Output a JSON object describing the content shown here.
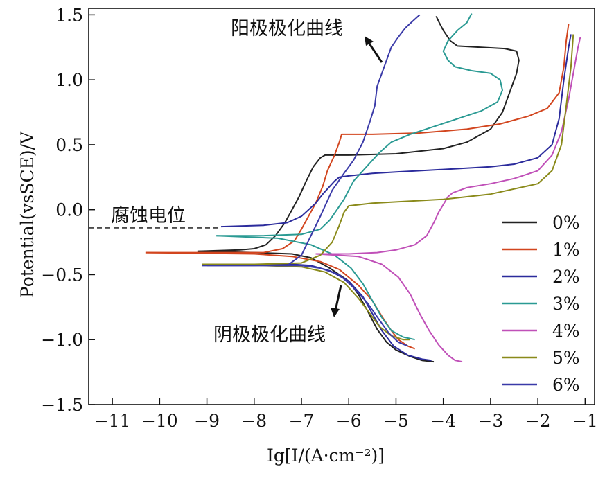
{
  "chart_data": {
    "type": "line",
    "title": "",
    "xlabel": "Ig[I/(A·cm⁻²)]",
    "ylabel": "Potential(vsSCE)/V",
    "xlim": [
      -11.5,
      -0.8
    ],
    "ylim": [
      -1.5,
      1.55
    ],
    "x_ticks": [
      -11,
      -10,
      -9,
      -8,
      -7,
      -6,
      -5,
      -4,
      -3,
      -2,
      -1
    ],
    "x_tick_labels": [
      "−11",
      "−10",
      "−9",
      "−8",
      "−7",
      "−6",
      "−5",
      "−4",
      "−3",
      "−2",
      "−1"
    ],
    "y_ticks": [
      -1.5,
      -1.0,
      -0.5,
      0.0,
      0.5,
      1.0,
      1.5
    ],
    "y_tick_labels": [
      "−1.5",
      "−1.0",
      "−0.5",
      "0.0",
      "0.5",
      "1.0",
      "1.5"
    ],
    "grid": false,
    "legend_position": "bottom-right",
    "annotations": {
      "anodic": "阳极极化曲线",
      "cathodic": "阴极极化曲线",
      "corrosion_potential": "腐蚀电位"
    },
    "corrosion_potential_line": {
      "y": -0.14,
      "x_from": -11.5,
      "x_to": -8.7
    },
    "series": [
      {
        "name": "0%",
        "color": "#222222",
        "anodic": [
          [
            -9.2,
            -0.32
          ],
          [
            -8.3,
            -0.31
          ],
          [
            -8.0,
            -0.3
          ],
          [
            -7.75,
            -0.27
          ],
          [
            -7.55,
            -0.2
          ],
          [
            -7.35,
            -0.1
          ],
          [
            -7.2,
            0.0
          ],
          [
            -7.05,
            0.1
          ],
          [
            -6.9,
            0.22
          ],
          [
            -6.75,
            0.33
          ],
          [
            -6.6,
            0.4
          ],
          [
            -6.5,
            0.42
          ],
          [
            -6.0,
            0.42
          ],
          [
            -5.0,
            0.43
          ],
          [
            -4.0,
            0.47
          ],
          [
            -3.5,
            0.52
          ],
          [
            -3.0,
            0.62
          ],
          [
            -2.75,
            0.75
          ],
          [
            -2.6,
            0.9
          ],
          [
            -2.45,
            1.05
          ],
          [
            -2.4,
            1.15
          ],
          [
            -2.45,
            1.22
          ],
          [
            -2.7,
            1.24
          ],
          [
            -3.2,
            1.25
          ],
          [
            -3.7,
            1.26
          ],
          [
            -3.85,
            1.3
          ],
          [
            -4.0,
            1.38
          ],
          [
            -4.1,
            1.45
          ],
          [
            -4.15,
            1.49
          ]
        ],
        "cathodic": [
          [
            -9.2,
            -0.32
          ],
          [
            -8.0,
            -0.33
          ],
          [
            -7.2,
            -0.34
          ],
          [
            -6.8,
            -0.37
          ],
          [
            -6.4,
            -0.45
          ],
          [
            -6.0,
            -0.55
          ],
          [
            -5.8,
            -0.65
          ],
          [
            -5.6,
            -0.78
          ],
          [
            -5.4,
            -0.92
          ],
          [
            -5.2,
            -1.02
          ],
          [
            -5.0,
            -1.08
          ],
          [
            -4.7,
            -1.13
          ],
          [
            -4.45,
            -1.16
          ],
          [
            -4.2,
            -1.17
          ]
        ]
      },
      {
        "name": "1%",
        "color": "#d2451e",
        "anodic": [
          [
            -10.3,
            -0.33
          ],
          [
            -9.0,
            -0.33
          ],
          [
            -7.8,
            -0.33
          ],
          [
            -7.4,
            -0.3
          ],
          [
            -7.15,
            -0.24
          ],
          [
            -7.0,
            -0.15
          ],
          [
            -6.85,
            -0.05
          ],
          [
            -6.7,
            0.05
          ],
          [
            -6.55,
            0.18
          ],
          [
            -6.45,
            0.3
          ],
          [
            -6.3,
            0.42
          ],
          [
            -6.2,
            0.52
          ],
          [
            -6.15,
            0.58
          ],
          [
            -5.5,
            0.58
          ],
          [
            -4.5,
            0.59
          ],
          [
            -3.5,
            0.62
          ],
          [
            -2.8,
            0.66
          ],
          [
            -2.2,
            0.72
          ],
          [
            -1.8,
            0.78
          ],
          [
            -1.55,
            0.9
          ],
          [
            -1.45,
            1.1
          ],
          [
            -1.4,
            1.3
          ],
          [
            -1.35,
            1.43
          ]
        ],
        "cathodic": [
          [
            -10.3,
            -0.33
          ],
          [
            -8.0,
            -0.34
          ],
          [
            -7.2,
            -0.36
          ],
          [
            -6.6,
            -0.4
          ],
          [
            -6.2,
            -0.46
          ],
          [
            -5.8,
            -0.58
          ],
          [
            -5.5,
            -0.7
          ],
          [
            -5.3,
            -0.82
          ],
          [
            -5.1,
            -0.93
          ],
          [
            -4.95,
            -1.0
          ],
          [
            -4.75,
            -1.05
          ],
          [
            -4.6,
            -1.07
          ]
        ]
      },
      {
        "name": "2%",
        "color": "#2b2b9c",
        "anodic": [
          [
            -8.7,
            -0.13
          ],
          [
            -7.8,
            -0.12
          ],
          [
            -7.3,
            -0.1
          ],
          [
            -7.0,
            -0.05
          ],
          [
            -6.7,
            0.05
          ],
          [
            -6.55,
            0.12
          ],
          [
            -6.4,
            0.18
          ],
          [
            -6.3,
            0.22
          ],
          [
            -6.2,
            0.25
          ],
          [
            -6.0,
            0.26
          ],
          [
            -5.5,
            0.28
          ],
          [
            -5.0,
            0.29
          ],
          [
            -4.0,
            0.31
          ],
          [
            -3.0,
            0.33
          ],
          [
            -2.5,
            0.35
          ],
          [
            -2.0,
            0.4
          ],
          [
            -1.7,
            0.5
          ],
          [
            -1.55,
            0.7
          ],
          [
            -1.45,
            1.0
          ],
          [
            -1.35,
            1.25
          ],
          [
            -1.3,
            1.35
          ]
        ],
        "cathodic": [
          [
            -9.0,
            -0.43
          ],
          [
            -8.0,
            -0.43
          ],
          [
            -7.2,
            -0.42
          ],
          [
            -6.8,
            -0.43
          ],
          [
            -6.4,
            -0.47
          ],
          [
            -6.0,
            -0.55
          ],
          [
            -5.7,
            -0.67
          ],
          [
            -5.5,
            -0.8
          ],
          [
            -5.3,
            -0.93
          ],
          [
            -5.05,
            -1.05
          ],
          [
            -4.75,
            -1.12
          ],
          [
            -4.45,
            -1.15
          ],
          [
            -4.25,
            -1.16
          ]
        ]
      },
      {
        "name": "3%",
        "color": "#2a9a93",
        "anodic": [
          [
            -8.8,
            -0.2
          ],
          [
            -7.8,
            -0.2
          ],
          [
            -7.0,
            -0.19
          ],
          [
            -6.6,
            -0.15
          ],
          [
            -6.4,
            -0.08
          ],
          [
            -6.25,
            0.0
          ],
          [
            -6.1,
            0.08
          ],
          [
            -6.0,
            0.15
          ],
          [
            -5.9,
            0.22
          ],
          [
            -5.75,
            0.28
          ],
          [
            -5.55,
            0.36
          ],
          [
            -5.35,
            0.44
          ],
          [
            -5.1,
            0.52
          ],
          [
            -4.7,
            0.58
          ],
          [
            -4.2,
            0.64
          ],
          [
            -3.7,
            0.7
          ],
          [
            -3.2,
            0.76
          ],
          [
            -2.85,
            0.83
          ],
          [
            -2.75,
            0.92
          ],
          [
            -2.8,
            1.0
          ],
          [
            -3.0,
            1.05
          ],
          [
            -3.4,
            1.07
          ],
          [
            -3.75,
            1.1
          ],
          [
            -3.9,
            1.15
          ],
          [
            -4.0,
            1.22
          ],
          [
            -3.9,
            1.3
          ],
          [
            -3.7,
            1.38
          ],
          [
            -3.5,
            1.44
          ],
          [
            -3.4,
            1.51
          ]
        ],
        "cathodic": [
          [
            -8.8,
            -0.2
          ],
          [
            -7.5,
            -0.22
          ],
          [
            -6.8,
            -0.27
          ],
          [
            -6.3,
            -0.35
          ],
          [
            -5.95,
            -0.45
          ],
          [
            -5.7,
            -0.57
          ],
          [
            -5.5,
            -0.7
          ],
          [
            -5.3,
            -0.83
          ],
          [
            -5.1,
            -0.93
          ],
          [
            -4.85,
            -0.98
          ],
          [
            -4.6,
            -1.0
          ]
        ]
      },
      {
        "name": "4%",
        "color": "#c050b8",
        "anodic": [
          [
            -6.7,
            -0.34
          ],
          [
            -6.0,
            -0.34
          ],
          [
            -5.4,
            -0.33
          ],
          [
            -5.0,
            -0.31
          ],
          [
            -4.6,
            -0.27
          ],
          [
            -4.35,
            -0.2
          ],
          [
            -4.2,
            -0.1
          ],
          [
            -4.1,
            -0.02
          ],
          [
            -4.0,
            0.04
          ],
          [
            -3.9,
            0.1
          ],
          [
            -3.8,
            0.13
          ],
          [
            -3.5,
            0.17
          ],
          [
            -3.0,
            0.2
          ],
          [
            -2.5,
            0.24
          ],
          [
            -2.0,
            0.3
          ],
          [
            -1.7,
            0.42
          ],
          [
            -1.5,
            0.6
          ],
          [
            -1.35,
            0.85
          ],
          [
            -1.25,
            1.05
          ],
          [
            -1.15,
            1.25
          ],
          [
            -1.1,
            1.33
          ]
        ],
        "cathodic": [
          [
            -6.7,
            -0.34
          ],
          [
            -5.8,
            -0.36
          ],
          [
            -5.3,
            -0.42
          ],
          [
            -4.95,
            -0.52
          ],
          [
            -4.7,
            -0.65
          ],
          [
            -4.5,
            -0.8
          ],
          [
            -4.3,
            -0.93
          ],
          [
            -4.1,
            -1.04
          ],
          [
            -3.9,
            -1.12
          ],
          [
            -3.75,
            -1.16
          ],
          [
            -3.6,
            -1.17
          ]
        ]
      },
      {
        "name": "5%",
        "color": "#8a8a1a",
        "anodic": [
          [
            -9.1,
            -0.42
          ],
          [
            -8.0,
            -0.42
          ],
          [
            -7.0,
            -0.41
          ],
          [
            -6.6,
            -0.35
          ],
          [
            -6.35,
            -0.25
          ],
          [
            -6.2,
            -0.12
          ],
          [
            -6.1,
            -0.02
          ],
          [
            -6.0,
            0.03
          ],
          [
            -5.5,
            0.05
          ],
          [
            -5.0,
            0.06
          ],
          [
            -4.0,
            0.08
          ],
          [
            -3.0,
            0.12
          ],
          [
            -2.5,
            0.16
          ],
          [
            -2.0,
            0.2
          ],
          [
            -1.7,
            0.3
          ],
          [
            -1.5,
            0.5
          ],
          [
            -1.4,
            0.8
          ],
          [
            -1.3,
            1.1
          ],
          [
            -1.25,
            1.35
          ]
        ],
        "cathodic": [
          [
            -9.1,
            -0.42
          ],
          [
            -7.8,
            -0.43
          ],
          [
            -7.0,
            -0.44
          ],
          [
            -6.5,
            -0.48
          ],
          [
            -6.1,
            -0.56
          ],
          [
            -5.8,
            -0.68
          ],
          [
            -5.55,
            -0.8
          ],
          [
            -5.35,
            -0.9
          ],
          [
            -5.1,
            -0.97
          ],
          [
            -4.85,
            -1.0
          ],
          [
            -4.7,
            -1.0
          ]
        ]
      },
      {
        "name": "6%",
        "color": "#3a3aa8",
        "anodic": [
          [
            -9.1,
            -0.43
          ],
          [
            -8.0,
            -0.43
          ],
          [
            -7.3,
            -0.43
          ],
          [
            -7.0,
            -0.35
          ],
          [
            -6.8,
            -0.2
          ],
          [
            -6.6,
            -0.05
          ],
          [
            -6.35,
            0.15
          ],
          [
            -6.1,
            0.28
          ],
          [
            -5.9,
            0.38
          ],
          [
            -5.7,
            0.52
          ],
          [
            -5.55,
            0.68
          ],
          [
            -5.45,
            0.8
          ],
          [
            -5.4,
            0.95
          ],
          [
            -5.3,
            1.05
          ],
          [
            -5.2,
            1.15
          ],
          [
            -5.1,
            1.25
          ],
          [
            -4.95,
            1.33
          ],
          [
            -4.8,
            1.4
          ],
          [
            -4.65,
            1.45
          ],
          [
            -4.5,
            1.5
          ]
        ],
        "cathodic": [
          [
            -9.1,
            -0.43
          ],
          [
            -7.8,
            -0.43
          ],
          [
            -7.0,
            -0.43
          ],
          [
            -6.6,
            -0.45
          ],
          [
            -6.2,
            -0.5
          ],
          [
            -5.9,
            -0.6
          ],
          [
            -5.6,
            -0.72
          ],
          [
            -5.35,
            -0.85
          ],
          [
            -5.15,
            -0.95
          ],
          [
            -4.95,
            -1.02
          ],
          [
            -4.75,
            -1.05
          ]
        ]
      }
    ]
  }
}
